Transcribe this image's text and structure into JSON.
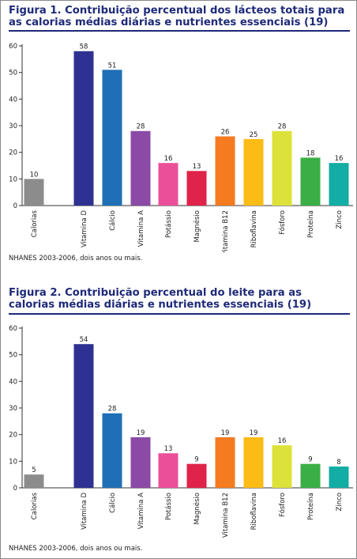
{
  "figures": [
    {
      "title": "Figura 1. Contribuição percentual dos lácteos totais para as calorias médias diárias e nutrientes essenciais (19)",
      "source": "NHANES 2003-2006, dois anos ou mais."
    },
    {
      "title": "Figura 2. Contribuição percentual do leite para as calorias médias diárias e nutrientes essenciais (19)",
      "source": "NHANES 2003-2006, dois anos ou mais."
    }
  ],
  "chart_data": [
    {
      "type": "bar",
      "title": "Figura 1. Contribuição percentual dos lácteos totais para as calorias médias diárias e nutrientes essenciais (19)",
      "categories": [
        "Calorias",
        "Vitamina D",
        "Cálcio",
        "Vitamina A",
        "Potássio",
        "Magnésio",
        "Vitamina B12",
        "Riboflavina",
        "Fósforo",
        "Proteína",
        "Zinco"
      ],
      "values": [
        10,
        58,
        51,
        28,
        16,
        13,
        26,
        25,
        28,
        18,
        16
      ],
      "yticks": [
        0,
        10,
        20,
        30,
        40,
        50,
        60
      ],
      "ylim": [
        0,
        60
      ],
      "xlabel": "",
      "ylabel": "",
      "grid": false,
      "bar_colors": [
        "#8c8c8c",
        "#2e3192",
        "#1f6fb6",
        "#8b4aa6",
        "#ec4f9a",
        "#e0234a",
        "#f47b20",
        "#fdbb16",
        "#dde23a",
        "#3aaf45",
        "#12ada4"
      ]
    },
    {
      "type": "bar",
      "title": "Figura 2. Contribuição percentual do leite para as calorias médias diárias e nutrientes essenciais (19)",
      "categories": [
        "Calorias",
        "Vitamina D",
        "Cálcio",
        "Vitamina A",
        "Potássio",
        "Magnésio",
        "Vitamina B12",
        "Riboflavina",
        "Fósforo",
        "Proteína",
        "Zinco"
      ],
      "values": [
        5,
        54,
        28,
        19,
        13,
        9,
        19,
        19,
        16,
        9,
        8
      ],
      "yticks": [
        0,
        10,
        20,
        30,
        40,
        50,
        60
      ],
      "ylim": [
        0,
        60
      ],
      "xlabel": "",
      "ylabel": "",
      "grid": false,
      "bar_colors": [
        "#8c8c8c",
        "#2e3192",
        "#1f6fb6",
        "#8b4aa6",
        "#ec4f9a",
        "#e0234a",
        "#f47b20",
        "#fdbb16",
        "#dde23a",
        "#3aaf45",
        "#12ada4"
      ]
    }
  ]
}
